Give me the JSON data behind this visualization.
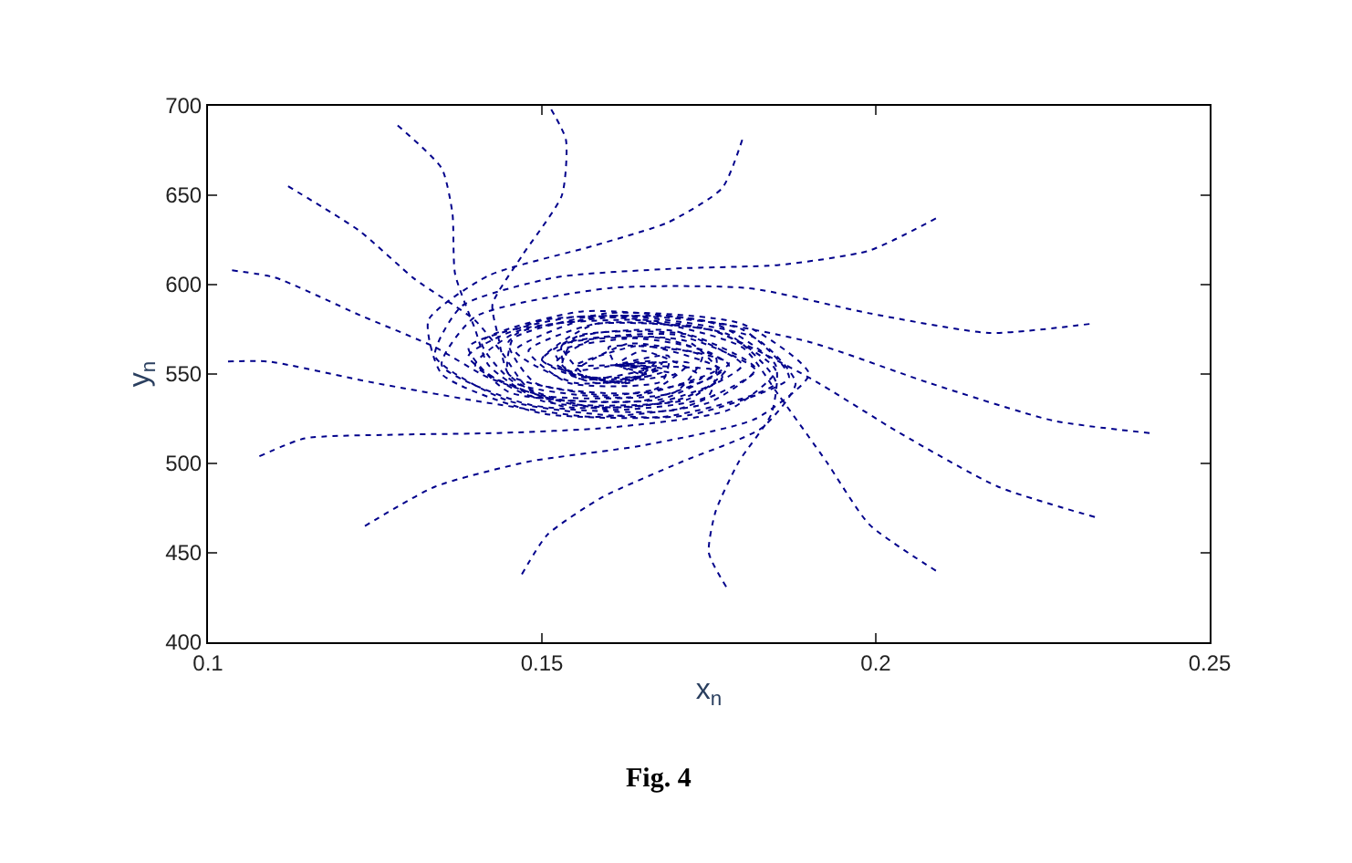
{
  "chart_data": {
    "type": "line",
    "xlabel": "x$_{n}$",
    "ylabel": "y$_{n}$",
    "annotations": [
      "Fig. 4"
    ],
    "xlim": [
      0.1,
      0.25
    ],
    "xticks": [
      {
        "value": 0.1,
        "label": "0.1"
      },
      0.15,
      0.2,
      0.25
    ],
    "ylim": [
      400,
      700
    ],
    "yticks": [
      400,
      450,
      500,
      550,
      600,
      650,
      700
    ],
    "marker": "none",
    "line_style": "dotted",
    "series": [
      {
        "color": "#00008b",
        "x": [
          0.1284,
          0.135,
          0.1366,
          0.137,
          0.14,
          0.142,
          0.15,
          0.165,
          0.177,
          0.172,
          0.158,
          0.152,
          0.16,
          0.168,
          0.161
        ],
        "values": [
          689,
          665,
          640,
          606,
          575,
          555,
          535,
          532,
          548,
          568,
          570,
          556,
          546,
          553,
          555
        ]
      },
      {
        "color": "#00008b",
        "x": [
          0.1514,
          0.1536,
          0.153,
          0.147,
          0.1426,
          0.1434,
          0.145,
          0.153,
          0.17,
          0.18,
          0.17,
          0.155,
          0.153,
          0.163,
          0.167,
          0.161
        ],
        "values": [
          698,
          681,
          650,
          616,
          589,
          572,
          550,
          532,
          535,
          555,
          574,
          570,
          553,
          545,
          557,
          555
        ]
      },
      {
        "color": "#00008b",
        "x": [
          0.112,
          0.1227,
          0.131,
          0.14,
          0.144,
          0.148,
          0.16,
          0.175,
          0.176,
          0.164,
          0.152,
          0.155,
          0.166,
          0.161
        ],
        "values": [
          655,
          630,
          603,
          580,
          562,
          542,
          530,
          538,
          560,
          570,
          562,
          548,
          549,
          555
        ]
      },
      {
        "color": "#00008b",
        "x": [
          0.1036,
          0.11,
          0.1227,
          0.134,
          0.142,
          0.155,
          0.172,
          0.178,
          0.168,
          0.153,
          0.154,
          0.165,
          0.161
        ],
        "values": [
          608,
          604,
          583,
          565,
          548,
          533,
          536,
          555,
          570,
          566,
          550,
          549,
          555
        ]
      },
      {
        "color": "#00008b",
        "x": [
          0.103,
          0.109,
          0.125,
          0.1434,
          0.158,
          0.175,
          0.182,
          0.172,
          0.156,
          0.15,
          0.158,
          0.168,
          0.161
        ],
        "values": [
          557,
          557,
          545,
          533,
          526,
          534,
          553,
          572,
          572,
          558,
          545,
          551,
          555
        ]
      },
      {
        "color": "#00008b",
        "x": [
          0.1077,
          0.1145,
          0.127,
          0.1434,
          0.16,
          0.178,
          0.185,
          0.176,
          0.158,
          0.148,
          0.154,
          0.168,
          0.169,
          0.161
        ],
        "values": [
          504,
          514,
          516,
          517,
          520,
          530,
          552,
          574,
          578,
          563,
          545,
          546,
          560,
          555
        ]
      },
      {
        "color": "#00008b",
        "x": [
          0.1235,
          0.134,
          0.148,
          0.165,
          0.182,
          0.19,
          0.18,
          0.16,
          0.145,
          0.149,
          0.166,
          0.172,
          0.161
        ],
        "values": [
          465,
          487,
          501,
          510,
          525,
          550,
          578,
          584,
          568,
          545,
          540,
          556,
          555
        ]
      },
      {
        "color": "#00008b",
        "x": [
          0.147,
          0.1508,
          0.159,
          0.171,
          0.183,
          0.188,
          0.182,
          0.163,
          0.146,
          0.145,
          0.16,
          0.174,
          0.165,
          0.161
        ],
        "values": [
          438,
          460,
          481,
          501,
          520,
          545,
          570,
          582,
          572,
          550,
          538,
          548,
          563,
          555
        ]
      },
      {
        "color": "#00008b",
        "x": [
          0.1776,
          0.175,
          0.176,
          0.1795,
          0.1844,
          0.185,
          0.176,
          0.156,
          0.141,
          0.146,
          0.163,
          0.176,
          0.161
        ],
        "values": [
          431,
          450,
          473,
          501,
          528,
          555,
          578,
          585,
          568,
          545,
          537,
          552,
          555
        ]
      },
      {
        "color": "#00008b",
        "x": [
          0.209,
          0.199,
          0.1926,
          0.1855,
          0.18,
          0.165,
          0.147,
          0.14,
          0.15,
          0.17,
          0.174,
          0.16,
          0.161
        ],
        "values": [
          440,
          466,
          501,
          538,
          565,
          580,
          575,
          555,
          538,
          540,
          560,
          565,
          555
        ]
      },
      {
        "color": "#00008b",
        "x": [
          0.2328,
          0.2183,
          0.2036,
          0.19,
          0.175,
          0.155,
          0.139,
          0.145,
          0.165,
          0.177,
          0.165,
          0.155,
          0.161
        ],
        "values": [
          470,
          487,
          517,
          548,
          575,
          582,
          565,
          540,
          535,
          552,
          566,
          555,
          555
        ]
      },
      {
        "color": "#00008b",
        "x": [
          0.241,
          0.2265,
          0.208,
          0.19,
          0.17,
          0.15,
          0.139,
          0.148,
          0.168,
          0.178,
          0.163,
          0.155,
          0.161
        ],
        "values": [
          517,
          524,
          545,
          568,
          582,
          580,
          560,
          538,
          536,
          556,
          567,
          552,
          555
        ]
      },
      {
        "color": "#00008b",
        "x": [
          0.232,
          0.217,
          0.199,
          0.181,
          0.16,
          0.14,
          0.135,
          0.148,
          0.17,
          0.182,
          0.17,
          0.153,
          0.157,
          0.166,
          0.161
        ],
        "values": [
          578,
          573,
          584,
          598,
          598,
          582,
          555,
          533,
          530,
          552,
          572,
          566,
          548,
          553,
          555
        ]
      },
      {
        "color": "#00008b",
        "x": [
          0.209,
          0.199,
          0.1855,
          0.17,
          0.152,
          0.138,
          0.134,
          0.145,
          0.168,
          0.185,
          0.178,
          0.158,
          0.15,
          0.162,
          0.168,
          0.161
        ],
        "values": [
          637,
          619,
          611,
          609,
          604,
          588,
          560,
          535,
          526,
          545,
          572,
          578,
          558,
          545,
          556,
          555
        ]
      },
      {
        "color": "#00008b",
        "x": [
          0.18,
          0.177,
          0.169,
          0.158,
          0.142,
          0.133,
          0.135,
          0.15,
          0.172,
          0.187,
          0.18,
          0.158,
          0.146,
          0.155,
          0.17,
          0.161
        ],
        "values": [
          681,
          654,
          635,
          622,
          605,
          580,
          550,
          528,
          527,
          548,
          575,
          582,
          563,
          545,
          550,
          555
        ]
      }
    ]
  }
}
